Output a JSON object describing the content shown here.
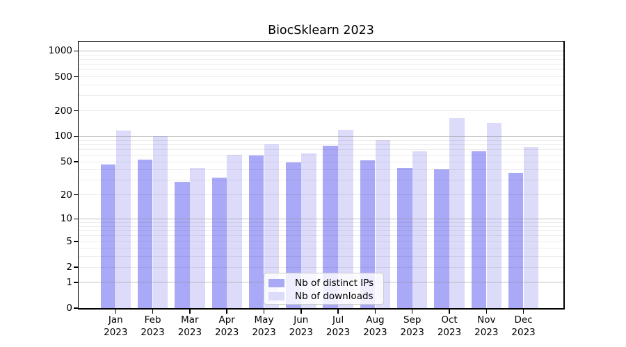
{
  "chart_data": {
    "type": "bar",
    "title": "BiocSklearn 2023",
    "categories": [
      "Jan",
      "Feb",
      "Mar",
      "Apr",
      "May",
      "Jun",
      "Jul",
      "Aug",
      "Sep",
      "Oct",
      "Nov",
      "Dec"
    ],
    "year_label": "2023",
    "series": [
      {
        "name": "Nb of distinct IPs",
        "color": "#a9a9f7",
        "values": [
          46,
          53,
          29,
          32,
          60,
          49,
          78,
          52,
          42,
          41,
          67,
          37
        ]
      },
      {
        "name": "Nb of downloads",
        "color": "#dcdcfa",
        "values": [
          117,
          101,
          42,
          61,
          81,
          63,
          120,
          90,
          67,
          165,
          143,
          75
        ]
      }
    ],
    "yticks": [
      0,
      1,
      2,
      5,
      10,
      20,
      50,
      100,
      200,
      500,
      1000
    ],
    "yscale": "log10(value+1)",
    "ylim": [
      0,
      1286
    ],
    "xlabel": "",
    "ylabel": "",
    "grid": "horizontal major and minor, drawn above bars",
    "legend_position": "inside bottom-center",
    "background": "#ffffff",
    "axis_color": "#000000",
    "major_grid_color": "#b0b0b0",
    "minor_grid_color": "#ebebeb"
  }
}
